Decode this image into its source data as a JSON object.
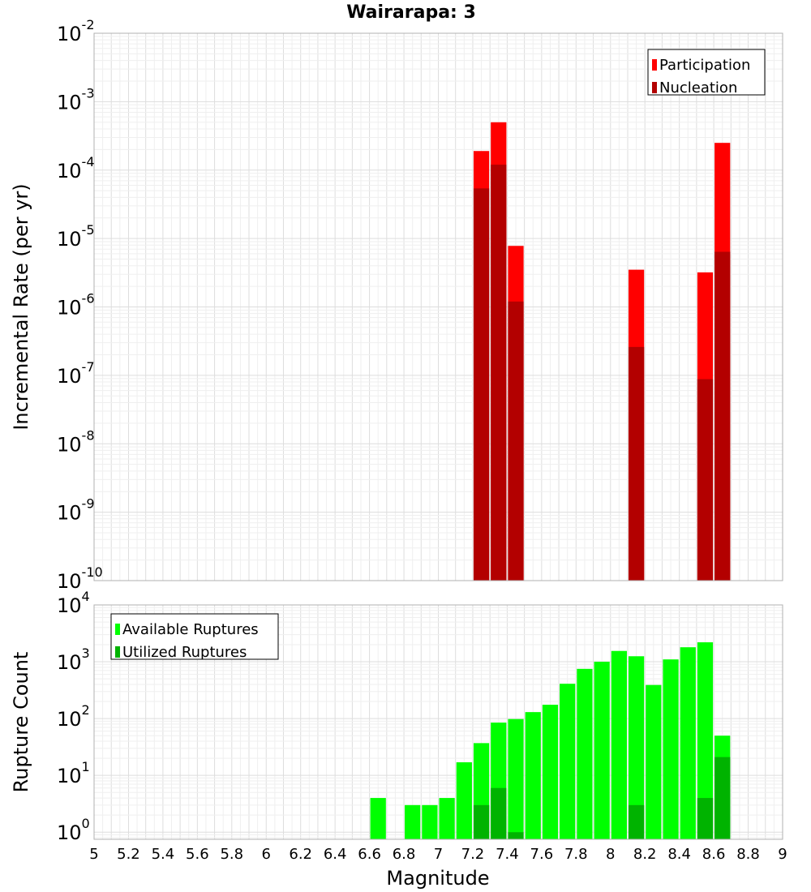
{
  "figure": {
    "title": "Wairarapa: 3",
    "xlabel": "Magnitude"
  },
  "chart_data": [
    {
      "type": "bar",
      "title": "Wairarapa: 3",
      "xlabel": "",
      "ylabel": "Incremental Rate (per yr)",
      "yscale": "log",
      "ylim": [
        1e-10,
        0.01
      ],
      "xlim": [
        5.0,
        9.0
      ],
      "grid": true,
      "legend_position": "top-right",
      "overlay": true,
      "x": [
        7.25,
        7.35,
        7.45,
        8.15,
        8.55,
        8.65
      ],
      "series": [
        {
          "name": "Participation",
          "color": "#ff0000",
          "values": [
            0.00019,
            0.0005,
            7.8e-06,
            3.5e-06,
            3.2e-06,
            0.00025
          ]
        },
        {
          "name": "Nucleation",
          "color": "#b30000",
          "values": [
            5.4e-05,
            0.00012,
            1.2e-06,
            2.6e-07,
            8.8e-08,
            6.4e-06
          ]
        }
      ],
      "ytick_labels": [
        {
          "base": "10",
          "exp": "-10"
        },
        {
          "base": "10",
          "exp": "-9"
        },
        {
          "base": "10",
          "exp": "-8"
        },
        {
          "base": "10",
          "exp": "-7"
        },
        {
          "base": "10",
          "exp": "-6"
        },
        {
          "base": "10",
          "exp": "-5"
        },
        {
          "base": "10",
          "exp": "-4"
        },
        {
          "base": "10",
          "exp": "-3"
        },
        {
          "base": "10",
          "exp": "-2"
        }
      ]
    },
    {
      "type": "bar",
      "xlabel": "Magnitude",
      "ylabel": "Rupture Count",
      "yscale": "log",
      "ylim": [
        0.75,
        10000
      ],
      "xlim": [
        5.0,
        9.0
      ],
      "grid": true,
      "legend_position": "top-left",
      "overlay": true,
      "x": [
        6.65,
        6.85,
        6.95,
        7.05,
        7.15,
        7.25,
        7.35,
        7.45,
        7.55,
        7.65,
        7.75,
        7.85,
        7.95,
        8.05,
        8.15,
        8.25,
        8.35,
        8.45,
        8.55,
        8.65
      ],
      "series": [
        {
          "name": "Available Ruptures",
          "color": "#00ff00",
          "values": [
            4,
            3,
            3,
            4,
            17,
            37,
            85,
            98,
            130,
            175,
            410,
            750,
            1000,
            1550,
            1250,
            390,
            1100,
            1800,
            2200,
            50
          ]
        },
        {
          "name": "Utilized Ruptures",
          "color": "#00b300",
          "values": [
            0,
            0,
            0,
            0,
            0,
            3,
            6,
            1,
            0,
            0,
            0,
            0,
            0,
            0,
            3,
            0,
            0,
            0,
            4,
            21
          ]
        }
      ],
      "ytick_labels": [
        {
          "base": "10",
          "exp": "0"
        },
        {
          "base": "10",
          "exp": "1"
        },
        {
          "base": "10",
          "exp": "2"
        },
        {
          "base": "10",
          "exp": "3"
        },
        {
          "base": "10",
          "exp": "4"
        }
      ],
      "xtick_labels": [
        "5",
        "5.2",
        "5.4",
        "5.6",
        "5.8",
        "6",
        "6.2",
        "6.4",
        "6.6",
        "6.8",
        "7",
        "7.2",
        "7.4",
        "7.6",
        "7.8",
        "8",
        "8.2",
        "8.4",
        "8.6",
        "8.8",
        "9"
      ]
    }
  ]
}
